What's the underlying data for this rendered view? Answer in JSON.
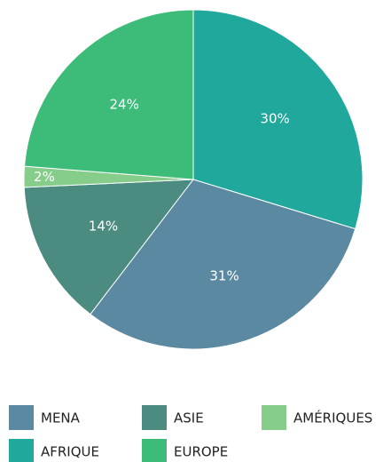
{
  "chart_data": {
    "type": "pie",
    "categories": [
      "AFRIQUE",
      "MENA",
      "ASIE",
      "AMÉRIQUES",
      "EUROPE"
    ],
    "values": [
      30,
      31,
      14,
      2,
      24
    ],
    "value_labels": [
      "30%",
      "31%",
      "14%",
      "2%",
      "24%"
    ],
    "colors": [
      "#1fa89b",
      "#5b89a2",
      "#4b8b80",
      "#86cc8b",
      "#3dbb78"
    ]
  }
}
